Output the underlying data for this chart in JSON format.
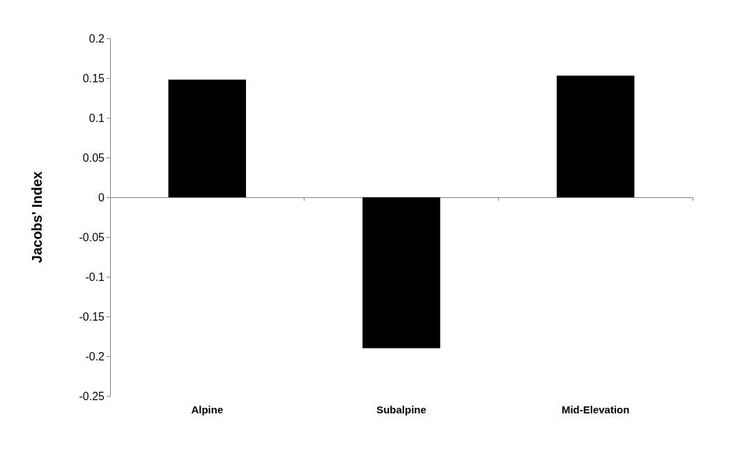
{
  "chart_data": {
    "type": "bar",
    "ylabel": "Jacobs' Index",
    "categories": [
      "Alpine",
      "Subalpine",
      "Mid-Elevation"
    ],
    "values": [
      0.148,
      -0.19,
      0.153
    ],
    "color": "#000000",
    "ylim": [
      -0.25,
      0.2
    ],
    "yticks": [
      -0.25,
      -0.2,
      -0.15,
      -0.1,
      -0.05,
      0,
      0.05,
      0.1,
      0.15,
      0.2
    ]
  }
}
